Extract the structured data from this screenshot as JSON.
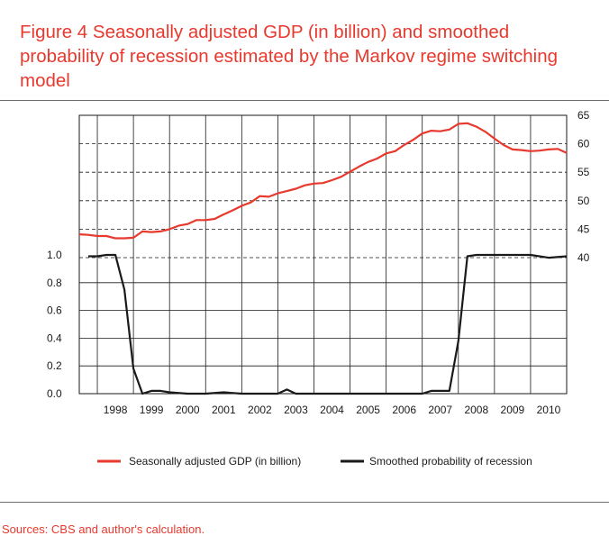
{
  "figure": {
    "title": "Figure 4 Seasonally adjusted GDP (in billion) and smoothed probability of recession estimated by the Markov regime switching model",
    "source": "Sources: CBS and author's calculation."
  },
  "chart_data": {
    "type": "line",
    "x_tick_labels": [
      "1998",
      "1999",
      "2000",
      "2001",
      "2002",
      "2003",
      "2004",
      "2005",
      "2006",
      "2007",
      "2008",
      "2009",
      "2010"
    ],
    "y_left": {
      "tick_labels": [
        "0.0",
        "0.2",
        "0.4",
        "0.6",
        "0.8",
        "1.0"
      ],
      "range": [
        0,
        1
      ]
    },
    "y_right": {
      "tick_labels": [
        "40",
        "45",
        "50",
        "55",
        "60",
        "65"
      ],
      "range": [
        40,
        65
      ]
    },
    "x_range": [
      1997.5,
      2011.0
    ],
    "grid": true,
    "legend_position": "bottom",
    "colors": {
      "gdp": "#e8392e",
      "prob": "#1a1a1a"
    },
    "series": [
      {
        "name": "Seasonally adjusted GDP (in billion)",
        "axis": "right",
        "x": [
          1997.5,
          1997.75,
          1998.0,
          1998.25,
          1998.5,
          1998.75,
          1999.0,
          1999.25,
          1999.5,
          1999.75,
          2000.0,
          2000.25,
          2000.5,
          2000.75,
          2001.0,
          2001.25,
          2001.5,
          2001.75,
          2002.0,
          2002.25,
          2002.5,
          2002.75,
          2003.0,
          2003.25,
          2003.5,
          2003.75,
          2004.0,
          2004.25,
          2004.5,
          2004.75,
          2005.0,
          2005.25,
          2005.5,
          2005.75,
          2006.0,
          2006.25,
          2006.5,
          2006.75,
          2007.0,
          2007.25,
          2007.5,
          2007.75,
          2008.0,
          2008.25,
          2008.5,
          2008.75,
          2009.0,
          2009.25,
          2009.5,
          2009.75,
          2010.0,
          2010.25,
          2010.5,
          2010.75,
          2011.0
        ],
        "values": [
          44.1,
          44.0,
          43.8,
          43.8,
          43.4,
          43.4,
          43.5,
          44.6,
          44.5,
          44.6,
          45.0,
          45.6,
          45.9,
          46.6,
          46.6,
          46.8,
          47.6,
          48.3,
          49.1,
          49.7,
          50.8,
          50.7,
          51.3,
          51.7,
          52.1,
          52.7,
          53.0,
          53.1,
          53.6,
          54.2,
          55.1,
          56.0,
          56.8,
          57.4,
          58.3,
          58.7,
          59.8,
          60.7,
          61.8,
          62.3,
          62.2,
          62.5,
          63.5,
          63.6,
          63.0,
          62.1,
          60.9,
          59.8,
          59.0,
          58.9,
          58.7,
          58.8,
          59.0,
          59.1,
          58.4
        ],
        "unit": "billion"
      },
      {
        "name": "Smoothed probability of recession",
        "axis": "left",
        "x": [
          1997.75,
          1998.0,
          1998.25,
          1998.5,
          1998.75,
          1999.0,
          1999.25,
          1999.5,
          1999.75,
          2000.0,
          2000.5,
          2001.0,
          2001.5,
          2002.0,
          2002.5,
          2003.0,
          2003.25,
          2003.5,
          2004.0,
          2005.0,
          2005.5,
          2006.0,
          2006.5,
          2007.0,
          2007.25,
          2007.5,
          2007.75,
          2008.0,
          2008.25,
          2008.5,
          2009.0,
          2009.5,
          2010.0,
          2010.5,
          2011.0
        ],
        "values": [
          0.99,
          0.99,
          1.0,
          1.0,
          0.75,
          0.18,
          0.0,
          0.02,
          0.02,
          0.01,
          0.0,
          0.0,
          0.01,
          0.0,
          0.0,
          0.0,
          0.03,
          0.0,
          0.0,
          0.0,
          0.0,
          0.0,
          0.0,
          0.0,
          0.02,
          0.02,
          0.02,
          0.38,
          0.99,
          1.0,
          1.0,
          1.0,
          1.0,
          0.98,
          0.99
        ]
      }
    ]
  }
}
